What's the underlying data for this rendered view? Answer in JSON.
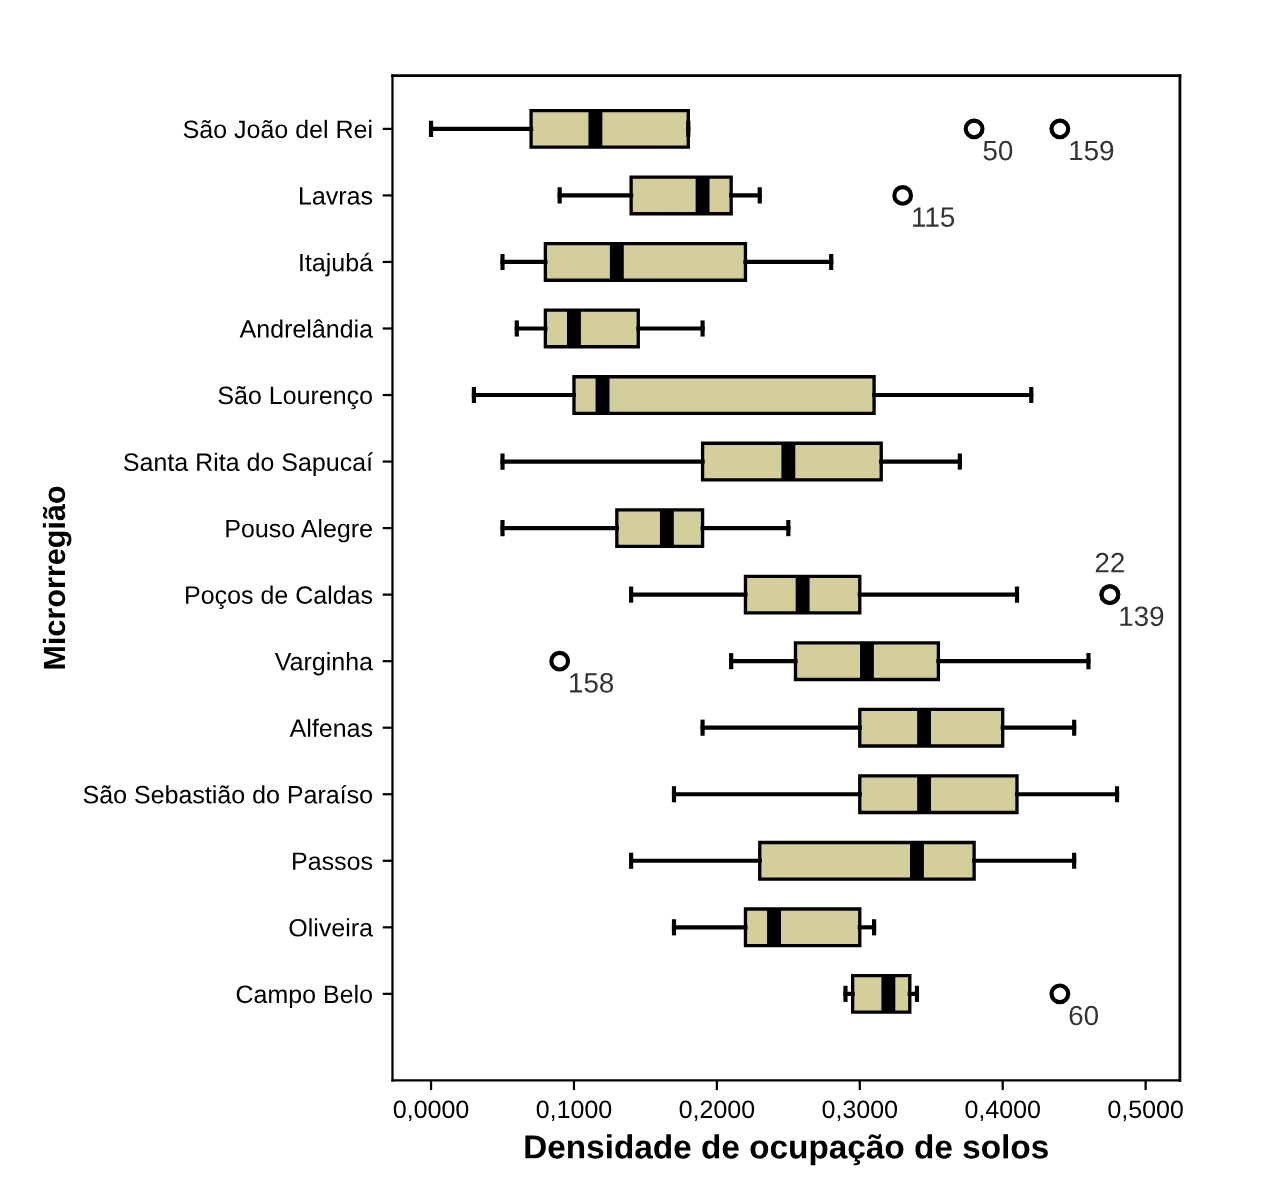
{
  "chart_data": {
    "type": "box",
    "orientation": "horizontal",
    "xlabel": "Densidade de ocupação de solos",
    "ylabel": "Microrregião",
    "categories": [
      "São João del Rei",
      "Lavras",
      "Itajubá",
      "Andrelândia",
      "São Lourenço",
      "Santa Rita do Sapucaí",
      "Pouso Alegre",
      "Poços de Caldas",
      "Varginha",
      "Alfenas",
      "São Sebastião do Paraíso",
      "Passos",
      "Oliveira",
      "Campo Belo"
    ],
    "color": "#d4cf9a",
    "boxes": [
      {
        "low": 0.0,
        "q1": 0.07,
        "median": 0.115,
        "q3": 0.18,
        "high": 0.18,
        "outliers": [
          0.38,
          0.44
        ]
      },
      {
        "low": 0.09,
        "q1": 0.14,
        "median": 0.19,
        "q3": 0.21,
        "high": 0.23,
        "outliers": [
          0.33
        ]
      },
      {
        "low": 0.05,
        "q1": 0.08,
        "median": 0.13,
        "q3": 0.22,
        "high": 0.28
      },
      {
        "low": 0.06,
        "q1": 0.08,
        "median": 0.1,
        "q3": 0.145,
        "high": 0.19
      },
      {
        "low": 0.03,
        "q1": 0.1,
        "median": 0.12,
        "q3": 0.31,
        "high": 0.42
      },
      {
        "low": 0.05,
        "q1": 0.19,
        "median": 0.25,
        "q3": 0.315,
        "high": 0.37
      },
      {
        "low": 0.05,
        "q1": 0.13,
        "median": 0.165,
        "q3": 0.19,
        "high": 0.25
      },
      {
        "low": 0.14,
        "q1": 0.22,
        "median": 0.26,
        "q3": 0.3,
        "high": 0.41,
        "outliers": [
          0.475,
          0.475
        ]
      },
      {
        "low": 0.21,
        "q1": 0.255,
        "median": 0.305,
        "q3": 0.355,
        "high": 0.46,
        "outliers": [
          0.09
        ]
      },
      {
        "low": 0.19,
        "q1": 0.3,
        "median": 0.345,
        "q3": 0.4,
        "high": 0.45
      },
      {
        "low": 0.17,
        "q1": 0.3,
        "median": 0.345,
        "q3": 0.41,
        "high": 0.48
      },
      {
        "low": 0.14,
        "q1": 0.23,
        "median": 0.34,
        "q3": 0.38,
        "high": 0.45
      },
      {
        "low": 0.17,
        "q1": 0.22,
        "median": 0.24,
        "q3": 0.3,
        "high": 0.31
      },
      {
        "low": 0.29,
        "q1": 0.295,
        "median": 0.32,
        "q3": 0.335,
        "high": 0.34,
        "outliers": [
          0.44
        ]
      }
    ],
    "xlim": [
      -0.027,
      0.524
    ],
    "xticks": [
      {
        "value": 0,
        "label": "0,0000"
      },
      {
        "value": 0.1,
        "label": "0,1000"
      },
      {
        "value": 0.2,
        "label": "0,2000"
      },
      {
        "value": 0.3,
        "label": "0,3000"
      },
      {
        "value": 0.4,
        "label": "0,4000"
      },
      {
        "value": 0.5,
        "label": "0,5000"
      }
    ],
    "annotations": [
      "50",
      "159",
      "115",
      "22",
      "139",
      "158",
      "60"
    ],
    "grid": false
  }
}
